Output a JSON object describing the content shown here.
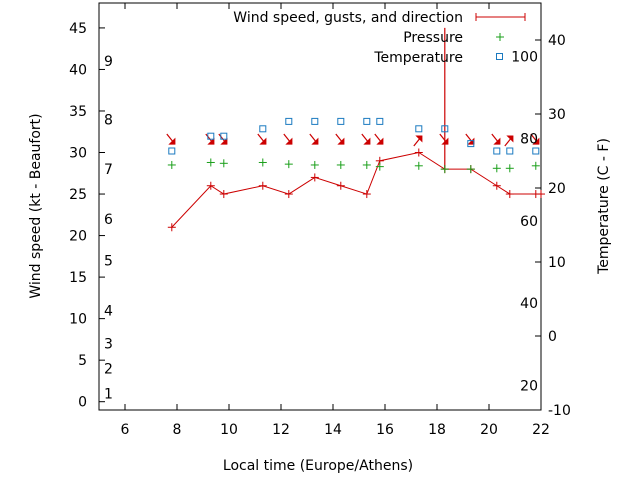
{
  "chart_data": {
    "type": "line",
    "xlabel": "Local time (Europe/Athens)",
    "ylabel": "Wind speed (kt - Beaufort)",
    "y2label": "Temperature (C - F)",
    "xlim": [
      5,
      22
    ],
    "ylim": [
      -1,
      48
    ],
    "y2lim": [
      -10,
      45
    ],
    "x_ticks": [
      "6",
      "8",
      "10",
      "12",
      "14",
      "16",
      "18",
      "20",
      "22"
    ],
    "y_ticks": [
      "0",
      "5",
      "10",
      "15",
      "20",
      "25",
      "30",
      "35",
      "40",
      "45"
    ],
    "y2_ticks": [
      "-10",
      "0",
      "10",
      "20",
      "30",
      "40"
    ],
    "beaufort_labels": [
      "1",
      "2",
      "3",
      "4",
      "5",
      "6",
      "7",
      "8",
      "9"
    ],
    "fahrenheit_labels": [
      "20",
      "40",
      "60",
      "80",
      "100"
    ],
    "legend_position": "top-right",
    "legend": {
      "wind": "Wind speed, gusts, and direction",
      "pressure": "Pressure",
      "temperature": "Temperature"
    },
    "colors": {
      "wind": "#cc0000",
      "pressure": "#1a9f1a",
      "temperature": "#1b7ac0"
    },
    "wind": {
      "x": [
        7.8,
        9.3,
        9.8,
        11.3,
        12.3,
        13.3,
        14.3,
        15.3,
        15.8,
        17.3,
        18.3,
        19.3,
        20.3,
        20.8,
        21.8,
        22.0
      ],
      "y": [
        21,
        26,
        25,
        26,
        25,
        27,
        26,
        25,
        29,
        30,
        28,
        28,
        26,
        25,
        25,
        25
      ]
    },
    "gust": {
      "x": 18.3,
      "from": 28,
      "to": 45
    },
    "direction_arrows": [
      {
        "x": 7.8,
        "angle": 120
      },
      {
        "x": 9.3,
        "angle": 120
      },
      {
        "x": 9.8,
        "angle": 120
      },
      {
        "x": 11.3,
        "angle": 120
      },
      {
        "x": 12.3,
        "angle": 120
      },
      {
        "x": 13.3,
        "angle": 120
      },
      {
        "x": 14.3,
        "angle": 120
      },
      {
        "x": 15.3,
        "angle": 120
      },
      {
        "x": 15.8,
        "angle": 120
      },
      {
        "x": 17.3,
        "angle": 60
      },
      {
        "x": 18.3,
        "angle": 120
      },
      {
        "x": 19.3,
        "angle": 120
      },
      {
        "x": 20.3,
        "angle": 120
      },
      {
        "x": 20.8,
        "angle": 60
      },
      {
        "x": 21.8,
        "angle": 120
      }
    ],
    "pressure": {
      "x": [
        7.8,
        9.3,
        9.8,
        11.3,
        12.3,
        13.3,
        14.3,
        15.3,
        15.8,
        17.3,
        18.3,
        19.3,
        20.3,
        20.8,
        21.8
      ],
      "y": [
        28.5,
        28.8,
        28.7,
        28.8,
        28.6,
        28.5,
        28.5,
        28.5,
        28.3,
        28.4,
        28.0,
        28.0,
        28.1,
        28.1,
        28.4
      ]
    },
    "temperature": {
      "x": [
        7.8,
        9.3,
        9.8,
        11.3,
        12.3,
        13.3,
        14.3,
        15.3,
        15.8,
        17.3,
        18.3,
        19.3,
        20.3,
        20.8,
        21.8
      ],
      "y": [
        25,
        27,
        27,
        28,
        29,
        29,
        29,
        29,
        29,
        28,
        28,
        26,
        25,
        25,
        25
      ]
    }
  }
}
